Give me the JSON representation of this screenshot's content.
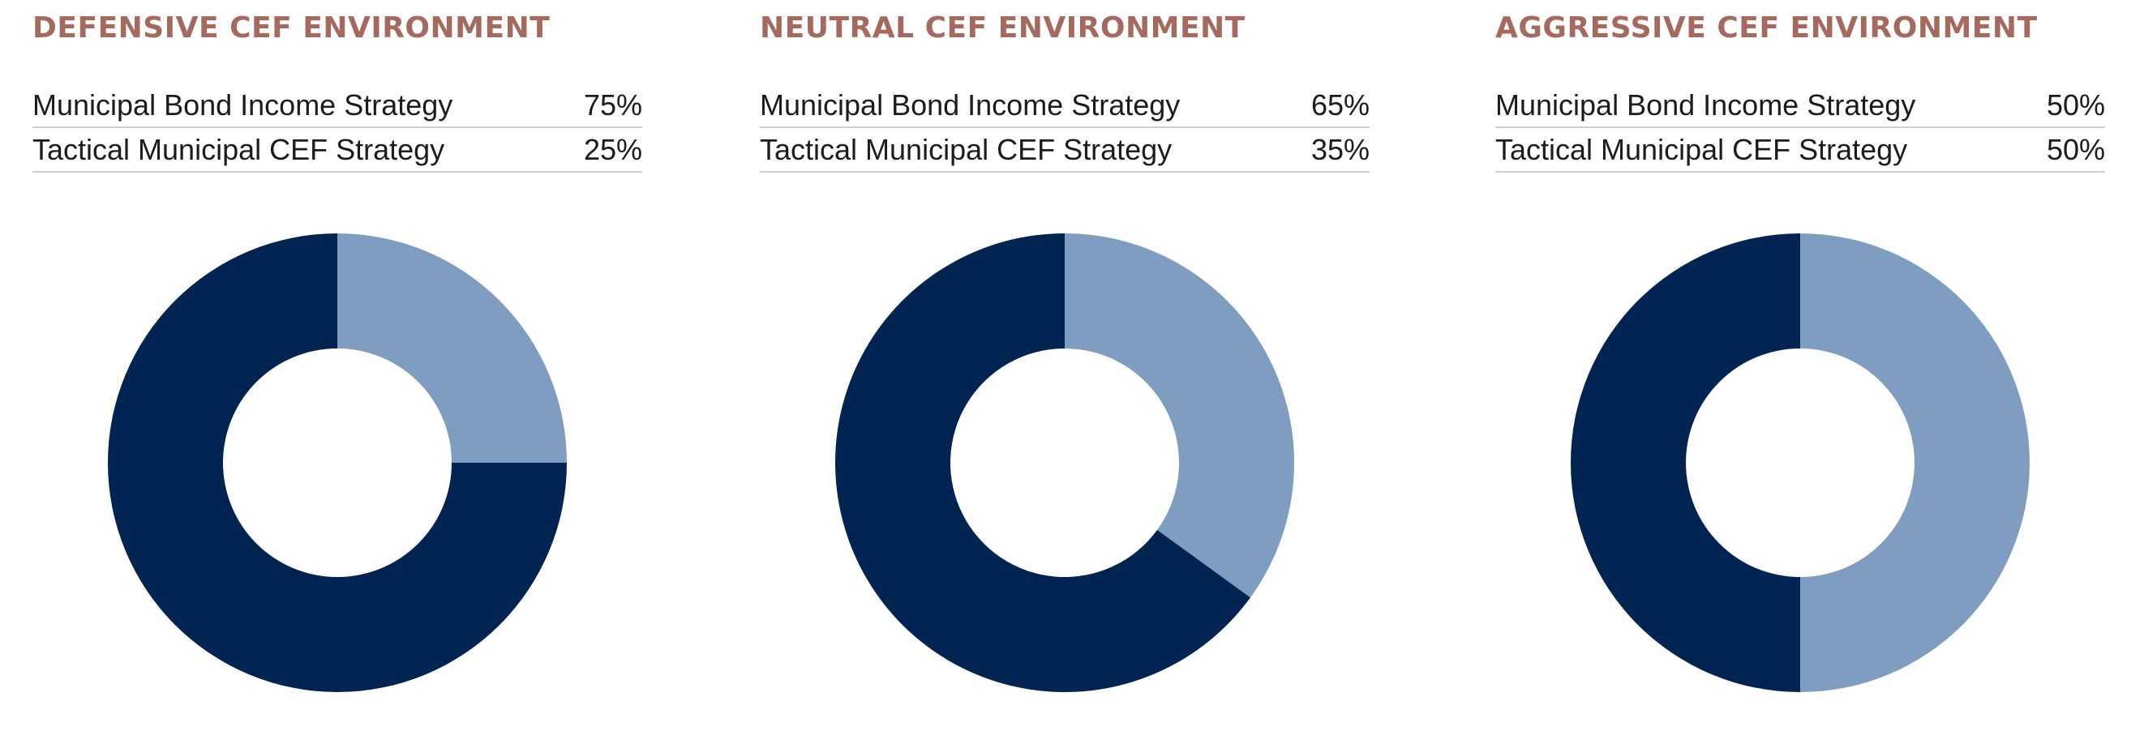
{
  "colors": {
    "title": "#a56a5d",
    "municipal_bond": "#022453",
    "tactical_cef": "#7f9dc1",
    "divider": "#cfcfcf"
  },
  "chart_data": [
    {
      "type": "pie",
      "title": "DEFENSIVE CEF ENVIRONMENT",
      "series": [
        {
          "name": "Municipal Bond Income Strategy",
          "value": 75,
          "label": "75%"
        },
        {
          "name": "Tactical Municipal CEF Strategy",
          "value": 25,
          "label": "25%"
        }
      ]
    },
    {
      "type": "pie",
      "title": "NEUTRAL CEF ENVIRONMENT",
      "series": [
        {
          "name": "Municipal Bond Income Strategy",
          "value": 65,
          "label": "65%"
        },
        {
          "name": "Tactical Municipal CEF Strategy",
          "value": 35,
          "label": "35%"
        }
      ]
    },
    {
      "type": "pie",
      "title": "AGGRESSIVE CEF ENVIRONMENT",
      "series": [
        {
          "name": "Municipal Bond Income Strategy",
          "value": 50,
          "label": "50%"
        },
        {
          "name": "Tactical Municipal CEF Strategy",
          "value": 50,
          "label": "50%"
        }
      ]
    }
  ]
}
